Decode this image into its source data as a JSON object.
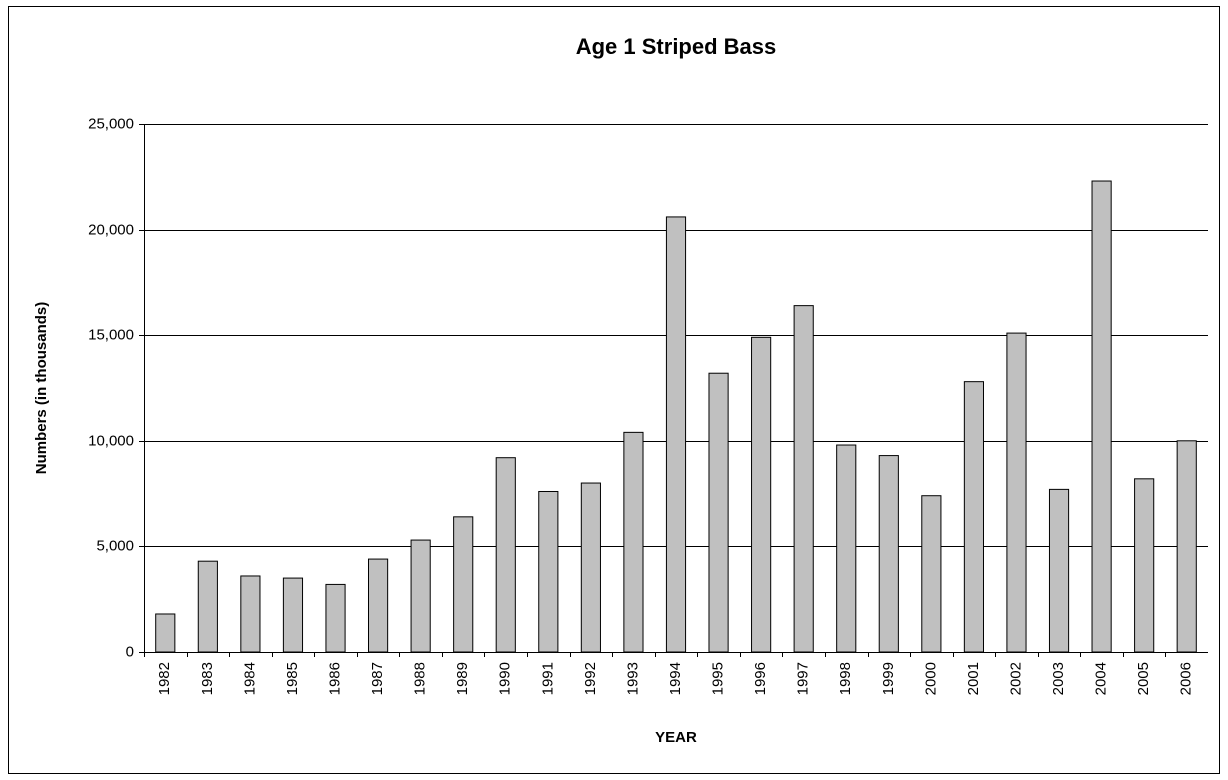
{
  "chart_data": {
    "type": "bar",
    "title": "Age 1 Striped Bass",
    "x_label": "YEAR",
    "y_label": "Numbers (in thousands)",
    "categories": [
      "1982",
      "1983",
      "1984",
      "1985",
      "1986",
      "1987",
      "1988",
      "1989",
      "1990",
      "1991",
      "1992",
      "1993",
      "1994",
      "1995",
      "1996",
      "1997",
      "1998",
      "1999",
      "2000",
      "2001",
      "2002",
      "2003",
      "2004",
      "2005",
      "2006"
    ],
    "values": [
      1800,
      4300,
      3600,
      3500,
      3200,
      4400,
      5300,
      6400,
      9200,
      7600,
      8000,
      10400,
      20600,
      13200,
      14900,
      16400,
      9800,
      9300,
      7400,
      12800,
      15100,
      7700,
      22300,
      8200,
      10000
    ],
    "color": "#c0c0c0",
    "ylim": [
      0,
      25000
    ],
    "yticks": [
      0,
      {
        "value": 5000,
        "label": "5,000"
      },
      {
        "value": 10000,
        "label": "10,000"
      },
      {
        "value": 15000,
        "label": "15,000"
      },
      {
        "value": 20000,
        "label": "20,000"
      },
      {
        "value": 25000,
        "label": "25,000"
      }
    ],
    "grid": true
  }
}
